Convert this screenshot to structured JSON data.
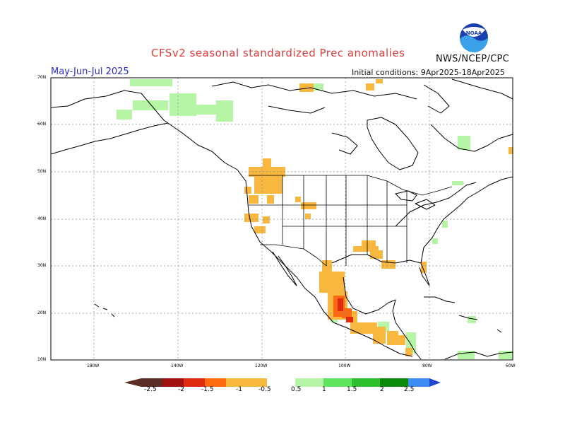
{
  "header": {
    "title": "CFSv2 seasonal standardized Prec anomalies",
    "period": "May-Jun-Jul 2025",
    "initial_conditions": "Initial conditions: 9Apr2025-18Apr2025",
    "agency": "NWS/NCEP/CPC",
    "logo_text": "NOAA"
  },
  "map": {
    "lat_labels": [
      "70N",
      "60N",
      "50N",
      "40N",
      "30N",
      "20N",
      "10N"
    ],
    "lon_labels": [
      "180W",
      "140W",
      "120W",
      "100W",
      "80W",
      "60W"
    ],
    "grid": true
  },
  "colorbar": {
    "labels": [
      "-2.5",
      "-2",
      "-1.5",
      "-1",
      "-0.5",
      "0.5",
      "1",
      "1.5",
      "2",
      "2.5"
    ],
    "colors": {
      "dry_extreme": "#5a2d24",
      "dry_2": "#a01010",
      "dry_1_5": "#e02a10",
      "dry_1": "#ff6a10",
      "dry_0_5": "#f8b840",
      "neutral": "#ffffff",
      "wet_0_5": "#b6f4a6",
      "wet_1": "#5ee45e",
      "wet_1_5": "#2cc02c",
      "wet_2": "#0c8a0c",
      "wet_2_5": "#3c8cf4",
      "wet_extreme": "#1f46cc"
    }
  }
}
